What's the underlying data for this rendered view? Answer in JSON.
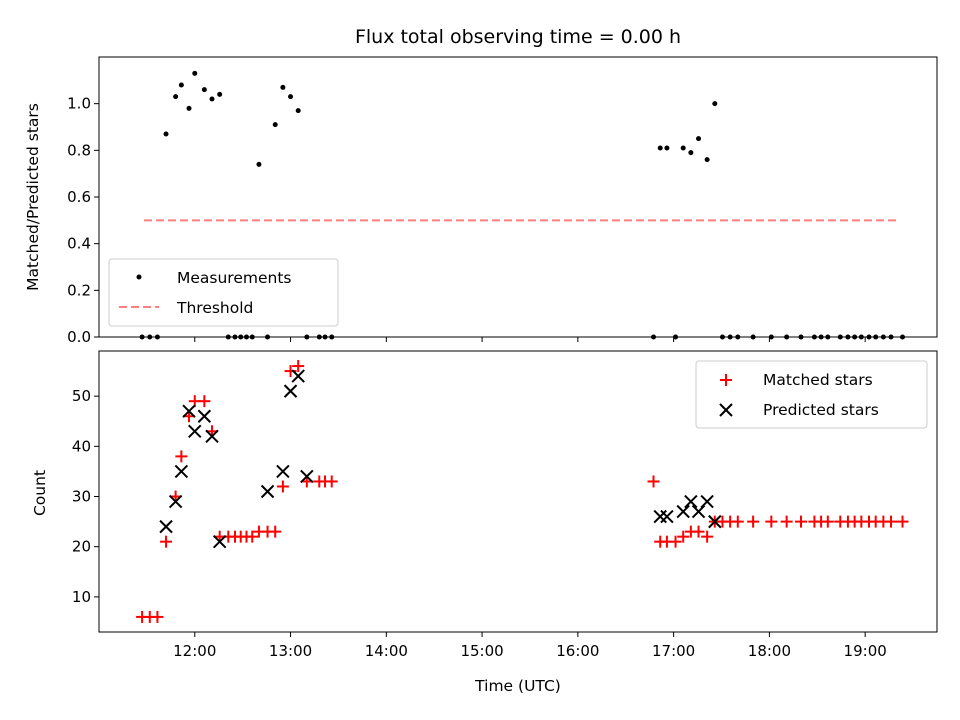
{
  "chart_data": {
    "title": "Flux total observing time = 0.00 h",
    "type": "scatter",
    "colors": {
      "measurements": "#000000",
      "threshold": "#ff7f7f",
      "matched": "#ff0000",
      "predicted": "#000000"
    },
    "xlabel": "Time (UTC)",
    "x_ticks": [
      "12:00",
      "13:00",
      "14:00",
      "15:00",
      "16:00",
      "17:00",
      "18:00",
      "19:00"
    ],
    "x_tick_hours": [
      12,
      13,
      14,
      15,
      16,
      17,
      18,
      19
    ],
    "xlim": [
      11.0,
      19.75
    ],
    "panels": [
      {
        "ylabel": "Matched/Predicted stars",
        "ylim": [
          0,
          1.2
        ],
        "y_ticks": [
          "0.0",
          "0.2",
          "0.4",
          "0.6",
          "0.8",
          "1.0"
        ],
        "y_tick_values": [
          0,
          0.2,
          0.4,
          0.6,
          0.8,
          1.0
        ],
        "legend": {
          "position": "lower left",
          "entries": [
            "Measurements",
            "Threshold"
          ]
        },
        "threshold": {
          "name": "Threshold",
          "value": 0.5,
          "x_range": [
            11.47,
            19.35
          ]
        },
        "measurements": {
          "name": "Measurements",
          "x": [
            11.45,
            11.53,
            11.61,
            11.7,
            11.8,
            11.86,
            11.94,
            12.0,
            12.1,
            12.18,
            12.26,
            12.35,
            12.42,
            12.48,
            12.54,
            12.6,
            12.67,
            12.76,
            12.84,
            12.92,
            13.0,
            13.08,
            13.17,
            13.3,
            13.36,
            13.43,
            16.79,
            16.86,
            16.93,
            17.02,
            17.1,
            17.18,
            17.26,
            17.35,
            17.43,
            17.51,
            17.59,
            17.67,
            17.83,
            18.02,
            18.18,
            18.33,
            18.47,
            18.54,
            18.61,
            18.74,
            18.82,
            18.89,
            18.96,
            19.04,
            19.11,
            19.19,
            19.27,
            19.39
          ],
          "y": [
            0,
            0,
            0,
            0.87,
            1.03,
            1.08,
            0.98,
            1.13,
            1.06,
            1.02,
            1.04,
            0,
            0,
            0,
            0,
            0,
            0.74,
            0,
            0.91,
            1.07,
            1.03,
            0.97,
            0,
            0,
            0,
            0,
            0,
            0.81,
            0.81,
            0,
            0.81,
            0.79,
            0.85,
            0.76,
            1.0,
            0,
            0,
            0,
            0,
            0,
            0,
            0,
            0,
            0,
            0,
            0,
            0,
            0,
            0,
            0,
            0,
            0,
            0,
            0
          ]
        }
      },
      {
        "ylabel": "Count",
        "ylim": [
          3,
          59
        ],
        "y_ticks": [
          "10",
          "20",
          "30",
          "40",
          "50"
        ],
        "y_tick_values": [
          10,
          20,
          30,
          40,
          50
        ],
        "legend": {
          "position": "upper right",
          "entries": [
            "Matched stars",
            "Predicted stars"
          ]
        },
        "series": [
          {
            "name": "Matched stars",
            "marker": "plus",
            "x": [
              11.45,
              11.53,
              11.61,
              11.7,
              11.8,
              11.86,
              11.94,
              12.0,
              12.1,
              12.18,
              12.26,
              12.35,
              12.42,
              12.48,
              12.54,
              12.6,
              12.67,
              12.76,
              12.84,
              12.92,
              13.0,
              13.08,
              13.17,
              13.3,
              13.36,
              13.43,
              16.79,
              16.86,
              16.93,
              17.02,
              17.1,
              17.18,
              17.26,
              17.35,
              17.43,
              17.51,
              17.59,
              17.67,
              17.83,
              18.02,
              18.18,
              18.33,
              18.47,
              18.54,
              18.61,
              18.74,
              18.82,
              18.89,
              18.96,
              19.04,
              19.11,
              19.19,
              19.27,
              19.39
            ],
            "y": [
              6,
              6,
              6,
              21,
              30,
              38,
              46,
              49,
              49,
              43,
              22,
              22,
              22,
              22,
              22,
              22,
              23,
              23,
              23,
              32,
              55,
              56,
              33,
              33,
              33,
              33,
              33,
              21,
              21,
              21,
              22,
              23,
              23,
              22,
              25,
              25,
              25,
              25,
              25,
              25,
              25,
              25,
              25,
              25,
              25,
              25,
              25,
              25,
              25,
              25,
              25,
              25,
              25,
              25
            ]
          },
          {
            "name": "Predicted stars",
            "marker": "x",
            "x": [
              11.7,
              11.8,
              11.86,
              11.94,
              12.0,
              12.1,
              12.18,
              12.26,
              12.76,
              12.92,
              13.0,
              13.08,
              13.17,
              16.86,
              16.93,
              17.1,
              17.18,
              17.26,
              17.35,
              17.43
            ],
            "y": [
              24,
              29,
              35,
              47,
              43,
              46,
              42,
              21,
              31,
              35,
              51,
              54,
              34,
              26,
              26,
              27,
              29,
              27,
              29,
              25
            ]
          }
        ]
      }
    ]
  }
}
